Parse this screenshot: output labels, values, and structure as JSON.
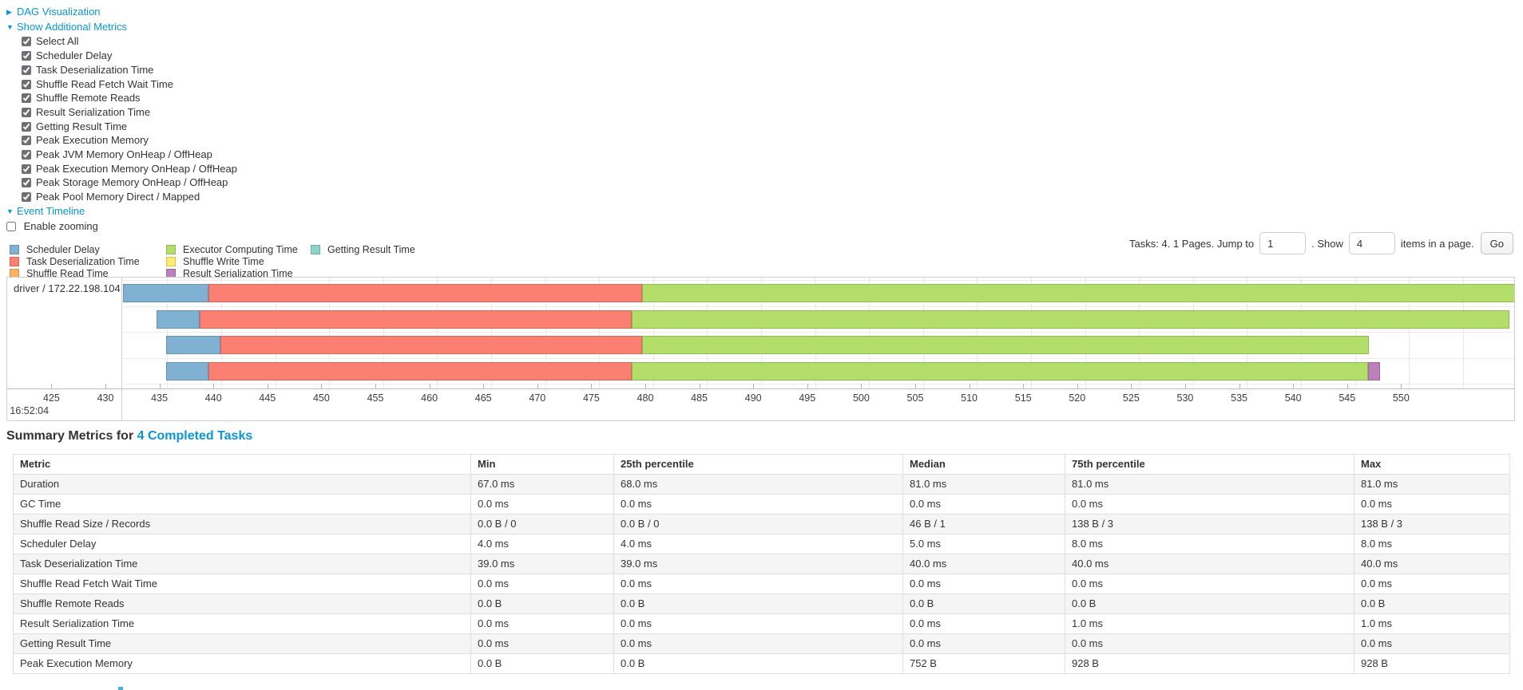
{
  "top": {
    "dag_link": "DAG Visualization",
    "metrics_link": "Show Additional Metrics",
    "checkboxes": [
      "Select All",
      "Scheduler Delay",
      "Task Deserialization Time",
      "Shuffle Read Fetch Wait Time",
      "Shuffle Remote Reads",
      "Result Serialization Time",
      "Getting Result Time",
      "Peak Execution Memory",
      "Peak JVM Memory OnHeap / OffHeap",
      "Peak Execution Memory OnHeap / OffHeap",
      "Peak Storage Memory OnHeap / OffHeap",
      "Peak Pool Memory Direct / Mapped"
    ],
    "event_timeline_link": "Event Timeline",
    "enable_zooming_label": "Enable zooming",
    "enable_zooming_checked": false
  },
  "pagination": {
    "prefix": "Tasks: 4. 1 Pages. Jump to",
    "jump_value": "1",
    "mid": ". Show",
    "show_value": "4",
    "suffix": "items in a page.",
    "go_label": "Go"
  },
  "chart_data": {
    "type": "timeline",
    "group_label": "driver / 172.22.198.104",
    "axis": {
      "min": 420.9,
      "max": 549.9,
      "tick_start": 425,
      "tick_step": 5,
      "tick_count": 26,
      "base_time_label": "16:52:04",
      "unit": "ms within second 16:52:04"
    },
    "legend": [
      {
        "name": "scheduler-delay",
        "label": "Scheduler Delay",
        "color": "#80B1D3"
      },
      {
        "name": "task-deserialization-time",
        "label": "Task Deserialization Time",
        "color": "#FB8072"
      },
      {
        "name": "shuffle-read-time",
        "label": "Shuffle Read Time",
        "color": "#FDB462"
      },
      {
        "name": "executor-computing-time",
        "label": "Executor Computing Time",
        "color": "#B3DE69"
      },
      {
        "name": "shuffle-write-time",
        "label": "Shuffle Write Time",
        "color": "#FFED6F"
      },
      {
        "name": "result-serialization-time",
        "label": "Result Serialization Time",
        "color": "#BC80BD"
      },
      {
        "name": "getting-result-time",
        "label": "Getting Result Time",
        "color": "#8DD3C7"
      }
    ],
    "legend_columns": [
      [
        0,
        1,
        2
      ],
      [
        3,
        4,
        5
      ],
      [
        6
      ]
    ],
    "tasks": [
      {
        "segments": [
          {
            "type": "scheduler-delay",
            "start": 420.9,
            "end": 428.8
          },
          {
            "type": "task-deserialization-time",
            "start": 428.8,
            "end": 469.0
          },
          {
            "type": "executor-computing-time",
            "start": 469.0,
            "end": 552.0
          }
        ]
      },
      {
        "segments": [
          {
            "type": "scheduler-delay",
            "start": 424.0,
            "end": 428.0
          },
          {
            "type": "task-deserialization-time",
            "start": 428.0,
            "end": 468.0
          },
          {
            "type": "executor-computing-time",
            "start": 468.0,
            "end": 549.3
          }
        ]
      },
      {
        "segments": [
          {
            "type": "scheduler-delay",
            "start": 424.9,
            "end": 429.9
          },
          {
            "type": "task-deserialization-time",
            "start": 429.9,
            "end": 469.0
          },
          {
            "type": "executor-computing-time",
            "start": 469.0,
            "end": 536.3
          }
        ]
      },
      {
        "segments": [
          {
            "type": "scheduler-delay",
            "start": 424.9,
            "end": 428.8
          },
          {
            "type": "task-deserialization-time",
            "start": 428.8,
            "end": 468.0
          },
          {
            "type": "executor-computing-time",
            "start": 468.0,
            "end": 536.2
          },
          {
            "type": "result-serialization-time",
            "start": 536.2,
            "end": 537.3
          }
        ]
      }
    ]
  },
  "summary": {
    "title_prefix": "Summary Metrics for ",
    "title_link": "4 Completed Tasks",
    "headers": [
      "Metric",
      "Min",
      "25th percentile",
      "Median",
      "75th percentile",
      "Max"
    ],
    "rows": [
      {
        "metric": "Duration",
        "values": [
          "67.0 ms",
          "68.0 ms",
          "81.0 ms",
          "81.0 ms",
          "81.0 ms"
        ]
      },
      {
        "metric": "GC Time",
        "values": [
          "0.0 ms",
          "0.0 ms",
          "0.0 ms",
          "0.0 ms",
          "0.0 ms"
        ]
      },
      {
        "metric": "Shuffle Read Size / Records",
        "values": [
          "0.0 B / 0",
          "0.0 B / 0",
          "46 B / 1",
          "138 B / 3",
          "138 B / 3"
        ]
      },
      {
        "metric": "Scheduler Delay",
        "values": [
          "4.0 ms",
          "4.0 ms",
          "5.0 ms",
          "8.0 ms",
          "8.0 ms"
        ]
      },
      {
        "metric": "Task Deserialization Time",
        "values": [
          "39.0 ms",
          "39.0 ms",
          "40.0 ms",
          "40.0 ms",
          "40.0 ms"
        ]
      },
      {
        "metric": "Shuffle Read Fetch Wait Time",
        "values": [
          "0.0 ms",
          "0.0 ms",
          "0.0 ms",
          "0.0 ms",
          "0.0 ms"
        ]
      },
      {
        "metric": "Shuffle Remote Reads",
        "values": [
          "0.0 B",
          "0.0 B",
          "0.0 B",
          "0.0 B",
          "0.0 B"
        ]
      },
      {
        "metric": "Result Serialization Time",
        "values": [
          "0.0 ms",
          "0.0 ms",
          "0.0 ms",
          "1.0 ms",
          "1.0 ms"
        ]
      },
      {
        "metric": "Getting Result Time",
        "values": [
          "0.0 ms",
          "0.0 ms",
          "0.0 ms",
          "0.0 ms",
          "0.0 ms"
        ]
      },
      {
        "metric": "Peak Execution Memory",
        "values": [
          "0.0 B",
          "0.0 B",
          "752 B",
          "928 B",
          "928 B"
        ]
      }
    ]
  }
}
